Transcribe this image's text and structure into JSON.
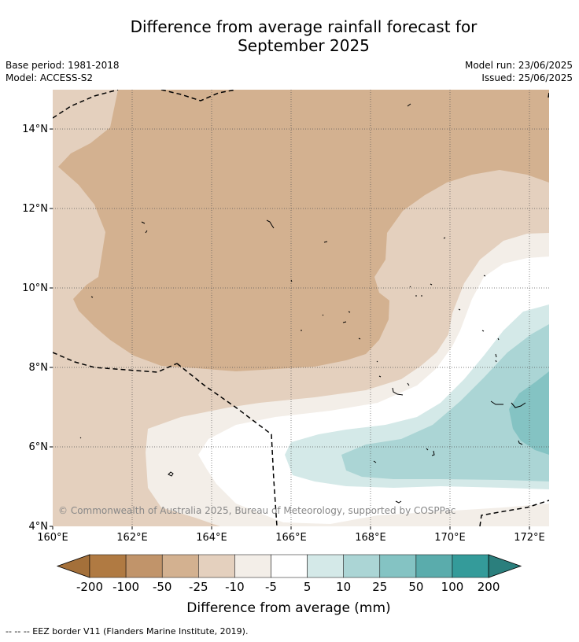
{
  "title_line1": "Difference from average rainfall forecast for",
  "title_line2": "September 2025",
  "base_period": "Base period: 1981-2018",
  "model": "Model: ACCESS-S2",
  "model_run": "Model run: 23/06/2025",
  "issued": "Issued: 25/06/2025",
  "copyright": "© Commonwealth of Australia 2025, Bureau of Meteorology, supported by COSPPac",
  "lon_ticks": [
    "160°E",
    "162°E",
    "164°E",
    "166°E",
    "168°E",
    "170°E",
    "172°E"
  ],
  "lat_ticks": [
    "14°N",
    "12°N",
    "10°N",
    "8°N",
    "6°N",
    "4°N"
  ],
  "colorbar": {
    "labels": [
      "-200",
      "-100",
      "-50",
      "-25",
      "-10",
      "-5",
      "5",
      "10",
      "25",
      "50",
      "100",
      "200"
    ],
    "colors": [
      "#a4703a",
      "#b07a42",
      "#c1946a",
      "#d3b190",
      "#e4d0be",
      "#f3eee8",
      "#ffffff",
      "#d4e9e8",
      "#abd5d5",
      "#84c3c3",
      "#5aacac",
      "#349b9a",
      "#2b7f7d"
    ],
    "title": "Difference from average (mm)"
  },
  "legend_line": "--  --  -- EEZ border V11 (Flanders Marine Institute, 2019)."
}
